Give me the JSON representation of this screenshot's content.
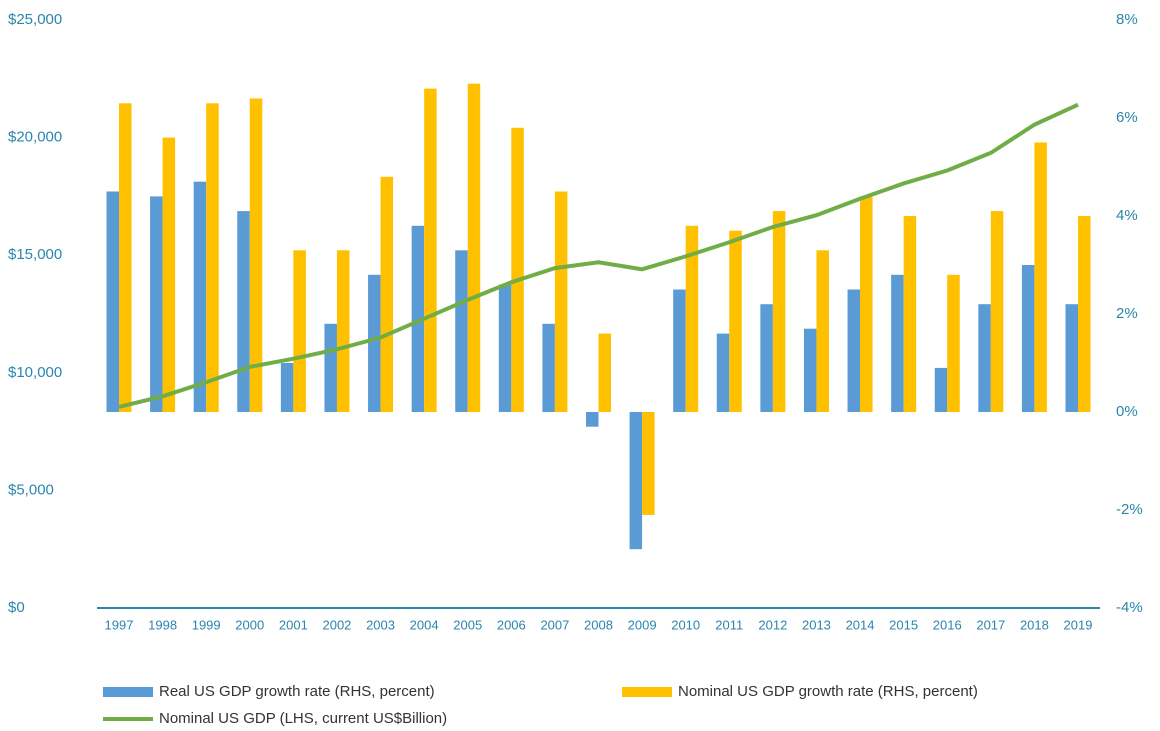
{
  "chart_data": {
    "type": "bar_line",
    "categories": [
      "1997",
      "1998",
      "1999",
      "2000",
      "2001",
      "2002",
      "2003",
      "2004",
      "2005",
      "2006",
      "2007",
      "2008",
      "2009",
      "2010",
      "2011",
      "2012",
      "2013",
      "2014",
      "2015",
      "2016",
      "2017",
      "2018",
      "2019"
    ],
    "series": [
      {
        "name": "Real US GDP growth rate (RHS, percent)",
        "type": "bar",
        "axis": "y2",
        "color": "#5b9bd5",
        "values": [
          4.5,
          4.4,
          4.7,
          4.1,
          1.0,
          1.8,
          2.8,
          3.8,
          3.3,
          2.6,
          1.8,
          -0.3,
          -2.8,
          2.5,
          1.6,
          2.2,
          1.7,
          2.5,
          2.8,
          0.9,
          2.2,
          3.0,
          2.2
        ]
      },
      {
        "name": "Nominal US GDP growth rate (RHS, percent)",
        "type": "bar",
        "axis": "y2",
        "color": "#ffc000",
        "values": [
          6.3,
          5.6,
          6.3,
          6.4,
          3.3,
          3.3,
          4.8,
          6.6,
          6.7,
          5.8,
          4.5,
          1.6,
          -2.1,
          3.8,
          3.7,
          4.1,
          3.3,
          4.4,
          4.0,
          2.8,
          4.1,
          5.5,
          4.0
        ]
      },
      {
        "name": "Nominal US GDP (LHS, current US$Billion)",
        "type": "line",
        "axis": "y",
        "color": "#70ad47",
        "values": [
          8550,
          9000,
          9600,
          10250,
          10600,
          11000,
          11500,
          12300,
          13100,
          13850,
          14450,
          14700,
          14400,
          14950,
          15550,
          16200,
          16700,
          17400,
          18050,
          18600,
          19350,
          20550,
          21400
        ]
      }
    ],
    "ylim": [
      0,
      25000
    ],
    "yticks": [
      {
        "value": 0,
        "label": "$0"
      },
      {
        "value": 5000,
        "label": "$5,000"
      },
      {
        "value": 10000,
        "label": "$10,000"
      },
      {
        "value": 15000,
        "label": "$15,000"
      },
      {
        "value": 20000,
        "label": "$20,000"
      },
      {
        "value": 25000,
        "label": "$25,000"
      }
    ],
    "y2lim": [
      -4,
      8
    ],
    "y2ticks": [
      {
        "value": -4,
        "label": "-4%"
      },
      {
        "value": -2,
        "label": "-2%"
      },
      {
        "value": 0,
        "label": "0%"
      },
      {
        "value": 2,
        "label": "2%"
      },
      {
        "value": 4,
        "label": "4%"
      },
      {
        "value": 6,
        "label": "6%"
      },
      {
        "value": 8,
        "label": "8%"
      }
    ],
    "grid": false,
    "legend": "bottom"
  }
}
